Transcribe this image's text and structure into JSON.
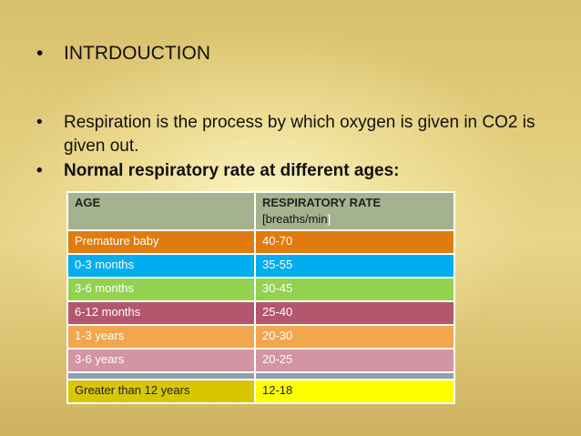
{
  "slide": {
    "bullet_char": "•",
    "title": "INTRDOUCTION",
    "respiration_text": "Respiration is the process by which oxygen is given in CO2 is given out.",
    "rate_heading": "Normal respiratory rate at different ages:"
  },
  "table": {
    "header_age": "AGE",
    "header_rate": "RESPIRATORY RATE",
    "header_unit_open": "[",
    "header_unit": "breaths/min",
    "header_unit_close": "]",
    "rows": [
      {
        "age": "Premature baby",
        "rate": "40-70",
        "color": "#e07b0e"
      },
      {
        "age": "0-3 months",
        "rate": "35-55",
        "color": "#00adef"
      },
      {
        "age": "3-6 months",
        "rate": "30-45",
        "color": "#93d150"
      },
      {
        "age": "6-12 months",
        "rate": "25-40",
        "color": "#b4566e"
      },
      {
        "age": "1-3 years",
        "rate": "20-30",
        "color": "#f2a64e"
      },
      {
        "age": "3-6 years",
        "rate": "20-25",
        "color": "#d394a4"
      },
      {
        "age": "Greater than 12 years",
        "rate": "12-18",
        "color": "#ffff00"
      }
    ]
  }
}
